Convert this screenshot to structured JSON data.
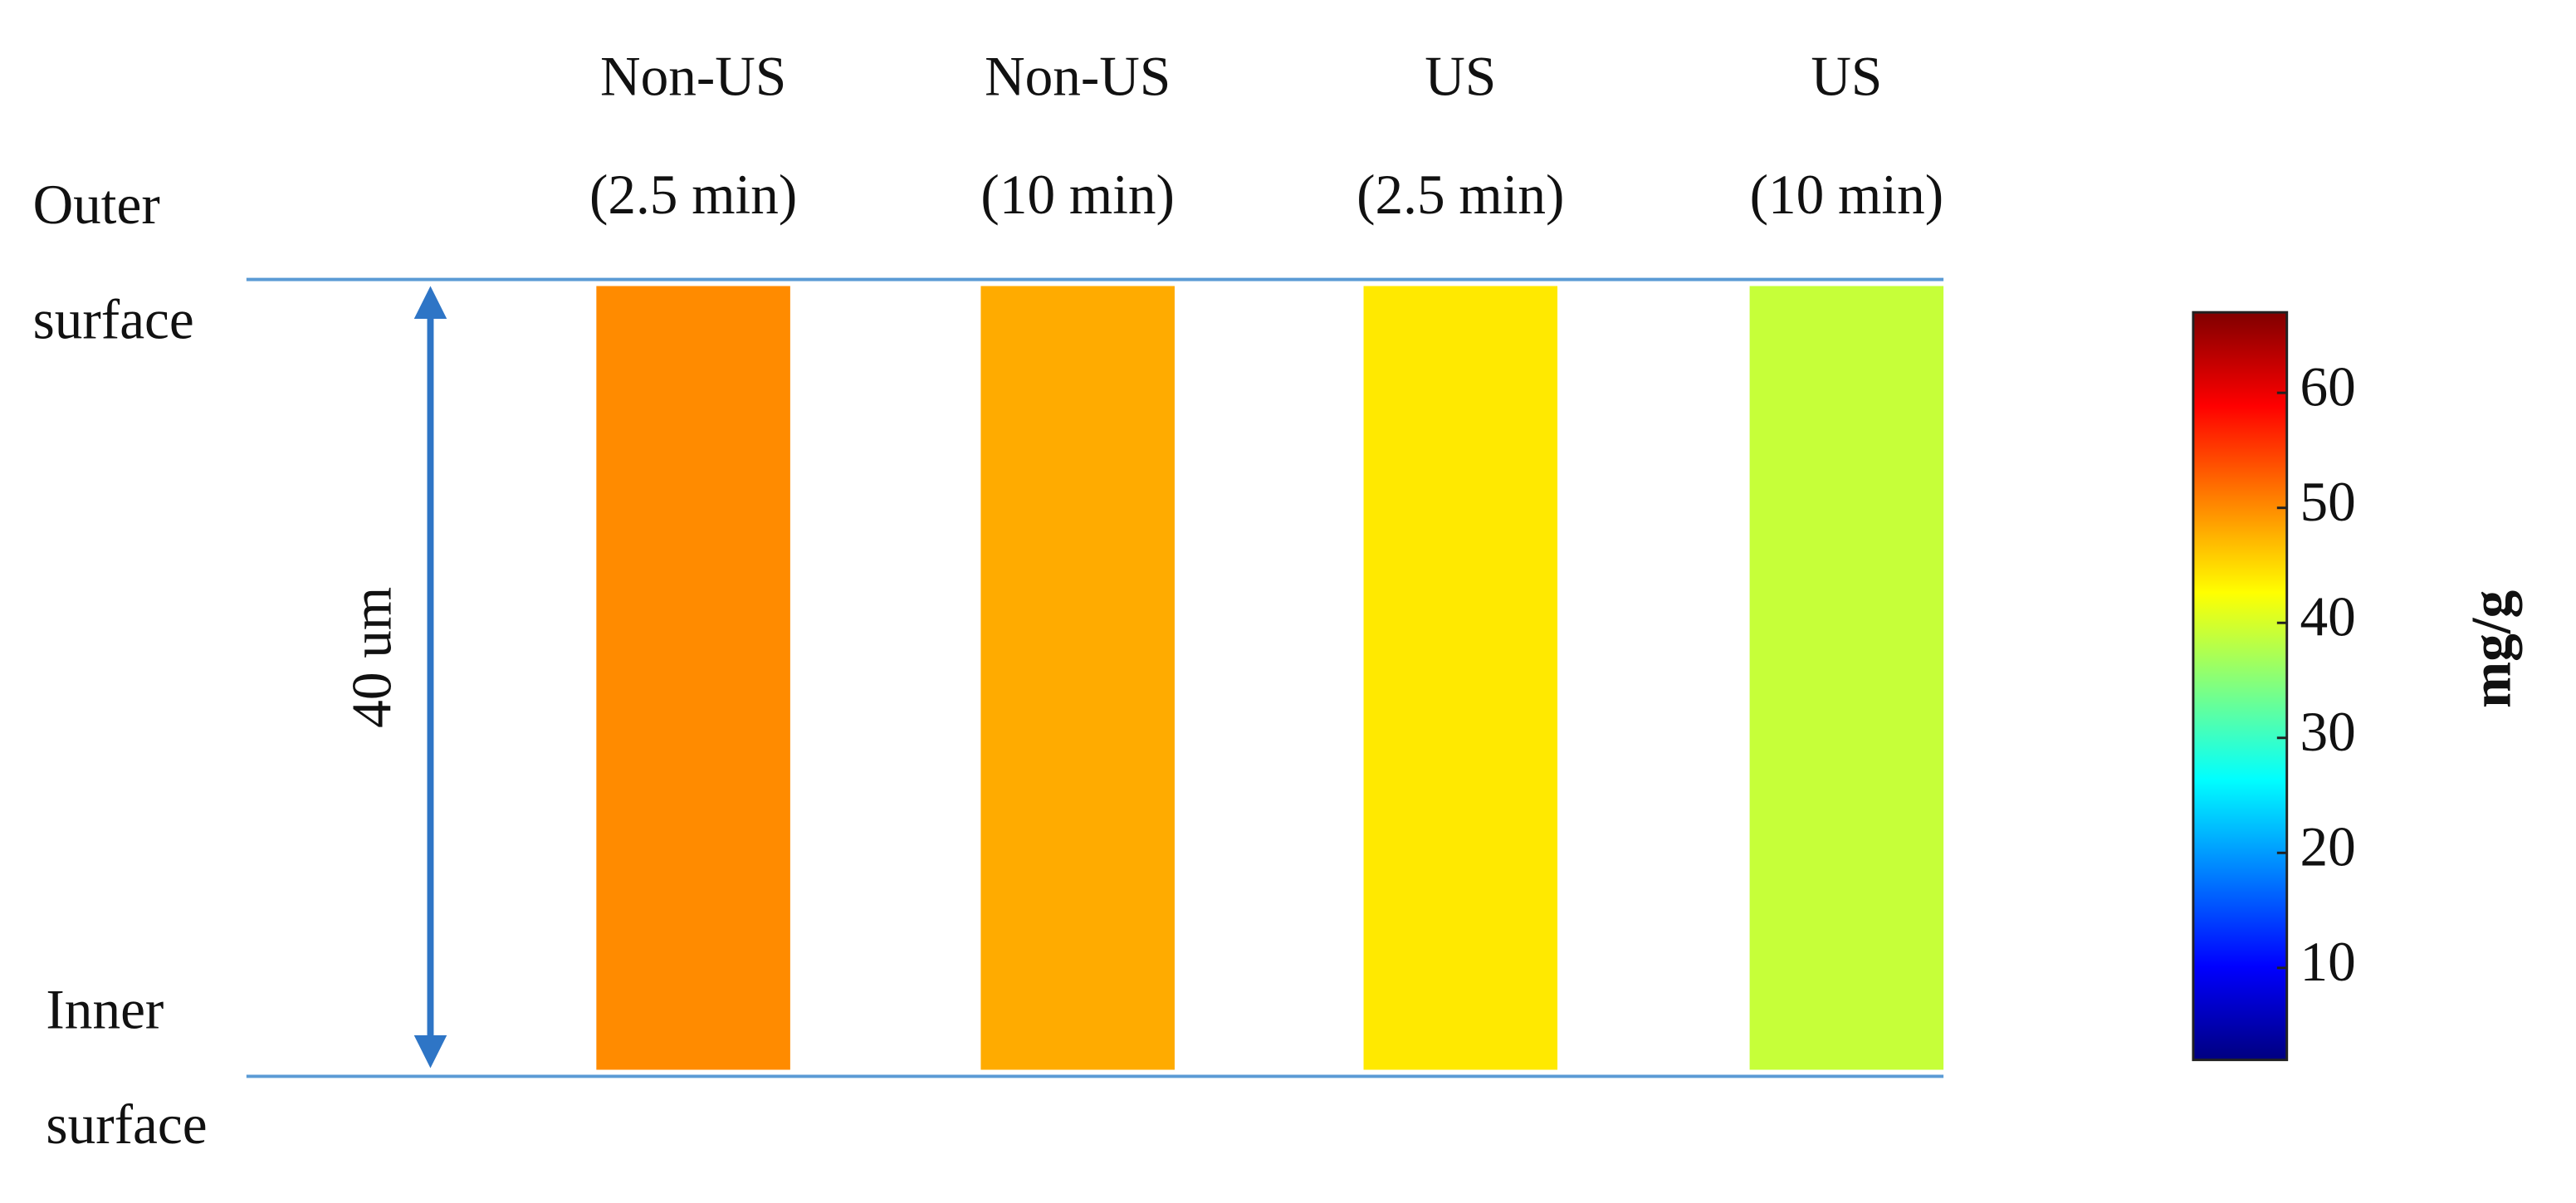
{
  "chart_data": {
    "type": "colormap-strips",
    "categories": [
      [
        "Non-US",
        "(2.5 min)"
      ],
      [
        "Non-US",
        "(10 min)"
      ],
      [
        "US",
        "(2.5 min)"
      ],
      [
        "US",
        "(10 min)"
      ]
    ],
    "values": [
      50,
      48,
      44,
      39
    ],
    "colormap": "jet",
    "clim": [
      2,
      67
    ],
    "cticks": [
      10,
      20,
      30,
      40,
      50,
      60
    ],
    "colorbar_label": "mg/g",
    "outer_label": [
      "Outer",
      "surface"
    ],
    "inner_label": [
      "Inner",
      "surface"
    ],
    "thickness_label": "40 um",
    "line_color": "#5b9bd5",
    "arrow_color": "#2e75c6"
  }
}
